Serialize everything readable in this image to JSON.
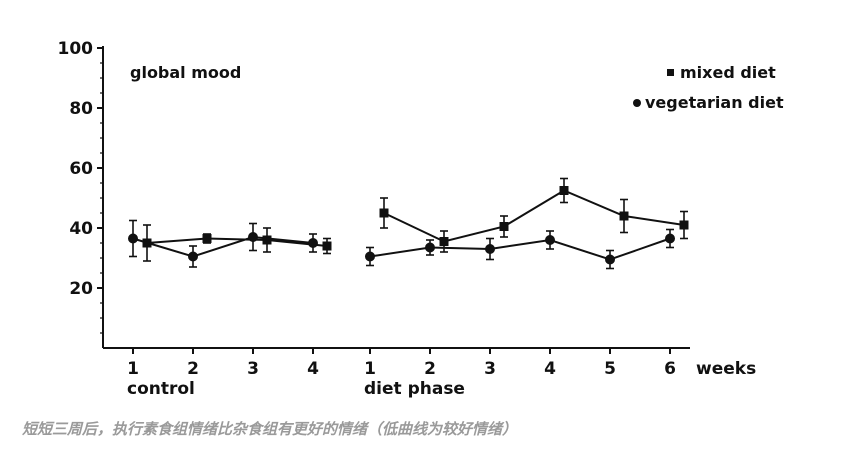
{
  "caption": "短短三周后，执行素食组情绪比杂食组有更好的情绪（低曲线为较好情绪）",
  "chart_data": {
    "type": "line",
    "title": "global mood",
    "xlabel": "weeks",
    "ylim": [
      0,
      100
    ],
    "yticks": [
      20,
      40,
      60,
      80,
      100
    ],
    "grid": false,
    "legend_position": "top-right",
    "phases": [
      {
        "label": "control",
        "categories": [
          "1",
          "2",
          "3",
          "4"
        ]
      },
      {
        "label": "diet phase",
        "categories": [
          "1",
          "2",
          "3",
          "4",
          "5",
          "6"
        ]
      }
    ],
    "series": [
      {
        "name": "mixed diet",
        "marker": "square",
        "control": [
          35,
          36.5,
          36,
          34
        ],
        "control_err": [
          6,
          1.5,
          4,
          2.5
        ],
        "diet": [
          45,
          35.5,
          40.5,
          52.5,
          44,
          41
        ],
        "diet_err": [
          5,
          3.5,
          3.5,
          4,
          5.5,
          4.5
        ]
      },
      {
        "name": "vegetarian diet",
        "marker": "circle",
        "control": [
          36.5,
          30.5,
          37,
          35
        ],
        "control_err": [
          6,
          3.5,
          4.5,
          3
        ],
        "diet": [
          30.5,
          33.5,
          33,
          36,
          29.5,
          36.5
        ],
        "diet_err": [
          3,
          2.5,
          3.5,
          3,
          3,
          3
        ]
      }
    ]
  }
}
